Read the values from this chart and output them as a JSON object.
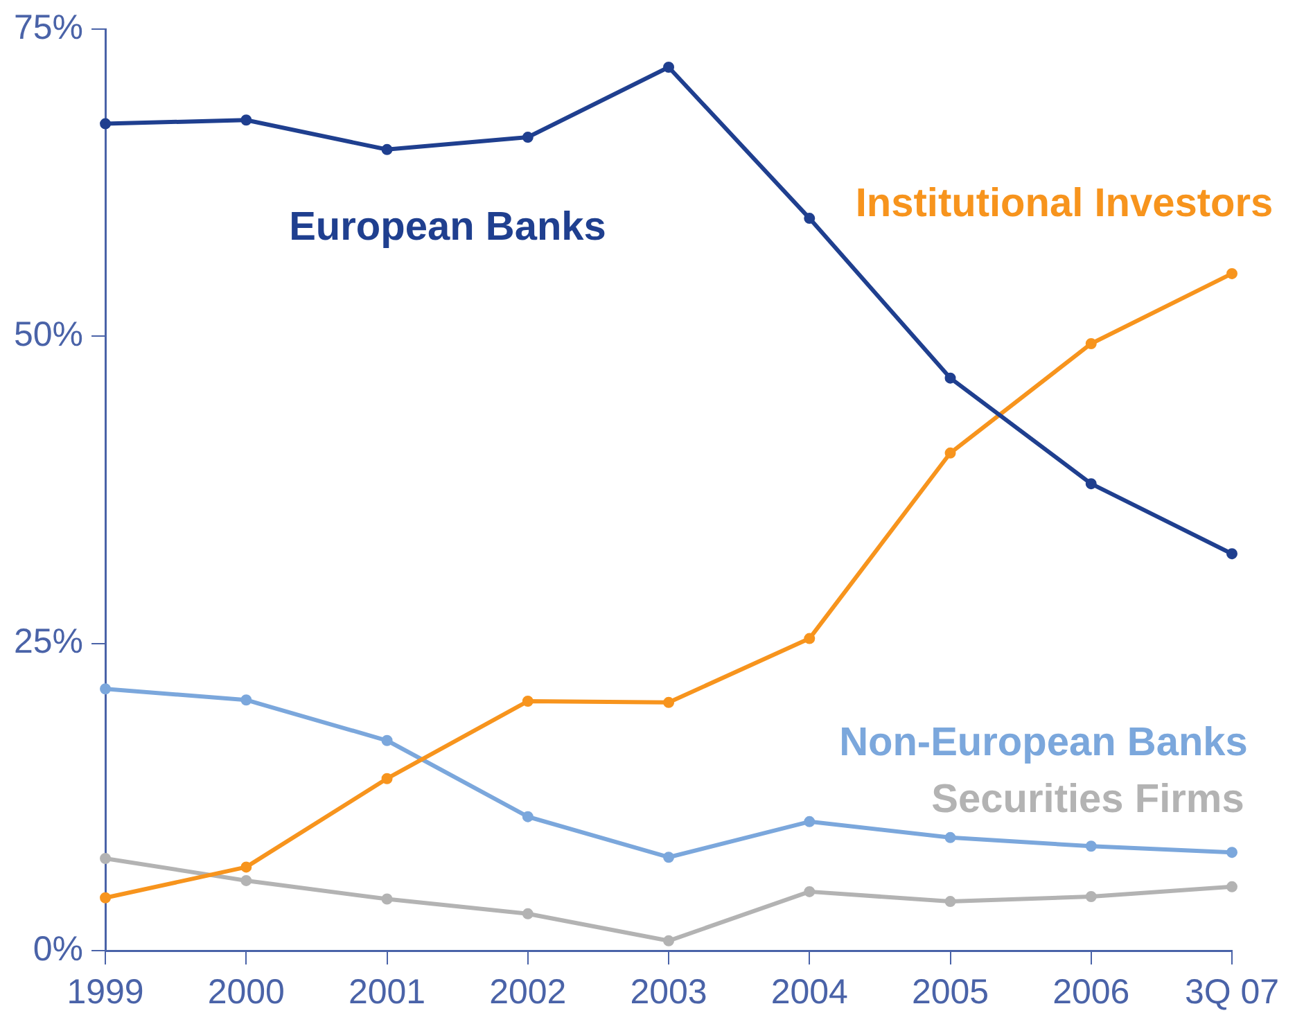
{
  "chart_data": {
    "type": "line",
    "categories": [
      "1999",
      "2000",
      "2001",
      "2002",
      "2003",
      "2004",
      "2005",
      "2006",
      "3Q 07"
    ],
    "series": [
      {
        "name": "European Banks",
        "color": "#1f3f8f",
        "values": [
          67.3,
          67.6,
          65.2,
          66.2,
          71.9,
          59.6,
          46.6,
          38.0,
          32.3
        ]
      },
      {
        "name": "Institutional Investors",
        "color": "#f7941d",
        "values": [
          4.3,
          6.8,
          14.0,
          20.3,
          20.2,
          25.4,
          40.5,
          49.4,
          55.1
        ]
      },
      {
        "name": "Non-European Banks",
        "color": "#7ba7dc",
        "values": [
          21.3,
          20.4,
          17.1,
          10.9,
          7.6,
          10.5,
          9.2,
          8.5,
          8.0
        ]
      },
      {
        "name": "Securities Firms",
        "color": "#b3b3b3",
        "values": [
          7.5,
          5.7,
          4.2,
          3.0,
          0.8,
          4.8,
          4.0,
          4.4,
          5.2
        ]
      }
    ],
    "ylim": [
      0,
      75
    ],
    "yticks": [
      {
        "value": 0,
        "label": "0%"
      },
      {
        "value": 25,
        "label": "25%"
      },
      {
        "value": 50,
        "label": "50%"
      },
      {
        "value": 75,
        "label": "75%"
      }
    ],
    "legend": false,
    "marker": "circle",
    "line_style": "solid"
  }
}
